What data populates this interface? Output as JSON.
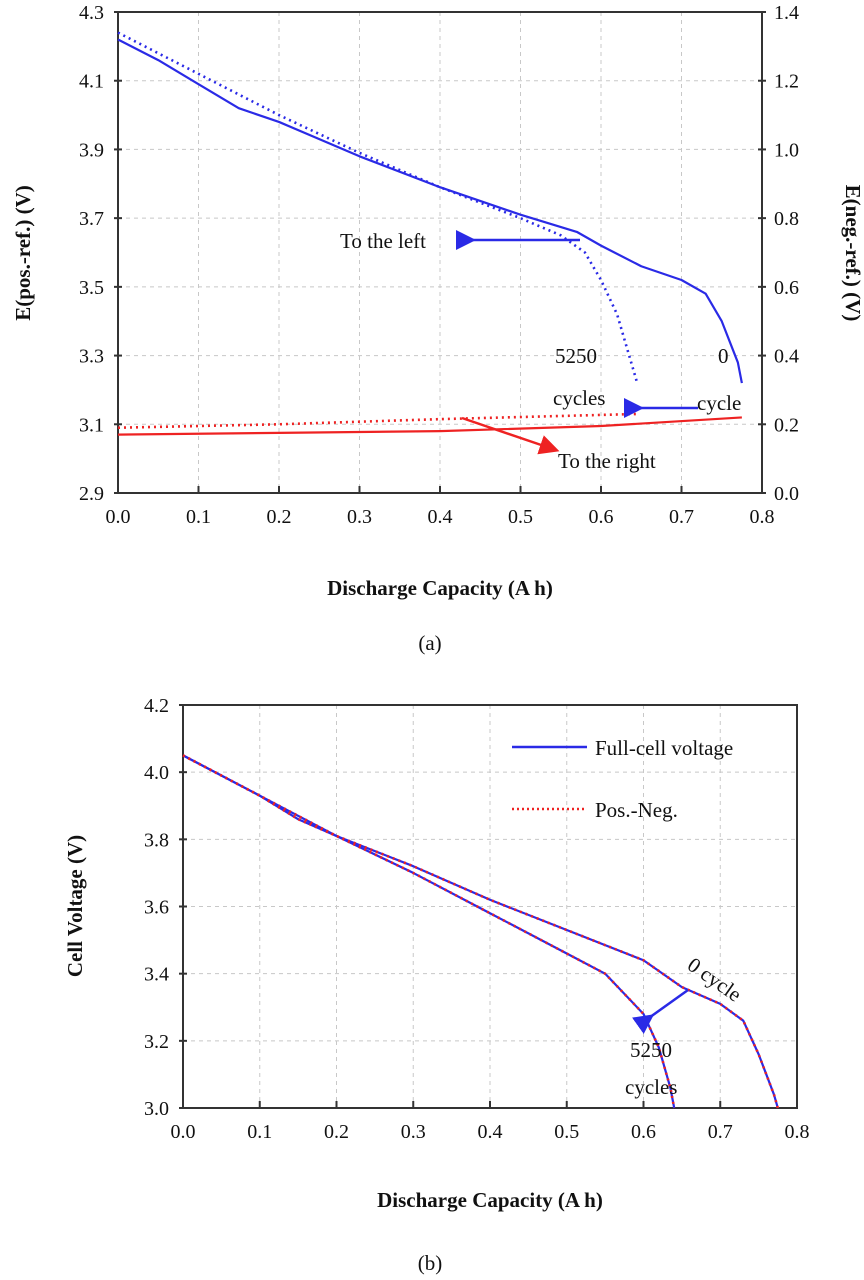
{
  "colors": {
    "blue": "#2a2ae6",
    "red": "#ee2222",
    "grid": "#c8c8c8",
    "axis": "#333333"
  },
  "chart_data": [
    {
      "type": "line",
      "caption": "(a)",
      "xlabel": "Discharge Capacity (A h)",
      "ylabel": "E(pos.-ref.) (V)",
      "y2label": "E(neg.-ref.) (V)",
      "xlim": [
        0,
        0.8
      ],
      "ylim": [
        2.9,
        4.3
      ],
      "y2lim": [
        0,
        1.4
      ],
      "xticks": [
        "0.0",
        "0.1",
        "0.2",
        "0.3",
        "0.4",
        "0.5",
        "0.6",
        "0.7",
        "0.8"
      ],
      "yticks": [
        "2.9",
        "3.1",
        "3.3",
        "3.5",
        "3.7",
        "3.9",
        "4.1",
        "4.3"
      ],
      "y2ticks": [
        "0.0",
        "0.2",
        "0.4",
        "0.6",
        "0.8",
        "1.0",
        "1.2",
        "1.4"
      ],
      "grid": true,
      "series": [
        {
          "name": "Positive 0 cycle",
          "axis": "left",
          "color": "blue",
          "style": "solid",
          "x": [
            0,
            0.05,
            0.1,
            0.15,
            0.2,
            0.3,
            0.4,
            0.5,
            0.57,
            0.6,
            0.65,
            0.7,
            0.73,
            0.75,
            0.77,
            0.775
          ],
          "y": [
            4.22,
            4.16,
            4.09,
            4.02,
            3.98,
            3.88,
            3.79,
            3.71,
            3.66,
            3.62,
            3.56,
            3.52,
            3.48,
            3.4,
            3.28,
            3.22
          ]
        },
        {
          "name": "Positive 5250 cycles",
          "axis": "left",
          "color": "blue",
          "style": "dotted",
          "x": [
            0,
            0.1,
            0.2,
            0.3,
            0.4,
            0.5,
            0.55,
            0.58,
            0.6,
            0.62,
            0.635,
            0.645
          ],
          "y": [
            4.24,
            4.12,
            4.0,
            3.89,
            3.79,
            3.7,
            3.65,
            3.6,
            3.52,
            3.42,
            3.3,
            3.22
          ]
        },
        {
          "name": "Negative 0 cycle",
          "axis": "right",
          "color": "red",
          "style": "solid",
          "x": [
            0,
            0.2,
            0.4,
            0.6,
            0.775
          ],
          "y": [
            0.17,
            0.175,
            0.18,
            0.195,
            0.22
          ]
        },
        {
          "name": "Negative 5250 cycles",
          "axis": "right",
          "color": "red",
          "style": "dotted",
          "x": [
            0,
            0.2,
            0.4,
            0.645
          ],
          "y": [
            0.19,
            0.2,
            0.215,
            0.23
          ]
        }
      ],
      "annotations": {
        "left": "To the left",
        "right": "To the right",
        "c5250": "5250",
        "cycles": "cycles",
        "c0": "0",
        "cycle": "cycle"
      }
    },
    {
      "type": "line",
      "caption": "(b)",
      "xlabel": "Discharge Capacity (A h)",
      "ylabel": "Cell Voltage (V)",
      "xlim": [
        0,
        0.8
      ],
      "ylim": [
        3.0,
        4.2
      ],
      "xticks": [
        "0.0",
        "0.1",
        "0.2",
        "0.3",
        "0.4",
        "0.5",
        "0.6",
        "0.7",
        "0.8"
      ],
      "yticks": [
        "3.0",
        "3.2",
        "3.4",
        "3.6",
        "3.8",
        "4.0",
        "4.2"
      ],
      "grid": true,
      "legend": {
        "placement": "top-right",
        "items": [
          "Full-cell voltage",
          "Pos.-Neg."
        ]
      },
      "series": [
        {
          "name": "Full-cell voltage 0 cycle",
          "color": "blue",
          "style": "solid",
          "x": [
            0,
            0.1,
            0.15,
            0.2,
            0.3,
            0.4,
            0.5,
            0.6,
            0.65,
            0.7,
            0.73,
            0.75,
            0.77,
            0.775
          ],
          "y": [
            4.05,
            3.93,
            3.86,
            3.81,
            3.72,
            3.62,
            3.53,
            3.44,
            3.36,
            3.31,
            3.26,
            3.16,
            3.04,
            3.0
          ]
        },
        {
          "name": "Full-cell voltage 5250 cycles",
          "color": "blue",
          "style": "solid",
          "x": [
            0,
            0.1,
            0.2,
            0.3,
            0.4,
            0.5,
            0.55,
            0.6,
            0.62,
            0.635,
            0.64
          ],
          "y": [
            4.05,
            3.93,
            3.81,
            3.7,
            3.58,
            3.46,
            3.4,
            3.28,
            3.18,
            3.06,
            3.0
          ]
        },
        {
          "name": "Pos.-Neg. 0 cycle",
          "color": "red",
          "style": "dotted",
          "x": [
            0,
            0.1,
            0.15,
            0.2,
            0.3,
            0.4,
            0.5,
            0.6,
            0.65,
            0.7,
            0.73,
            0.75,
            0.77,
            0.775
          ],
          "y": [
            4.05,
            3.93,
            3.86,
            3.81,
            3.72,
            3.62,
            3.53,
            3.44,
            3.36,
            3.31,
            3.26,
            3.16,
            3.04,
            3.0
          ]
        },
        {
          "name": "Pos.-Neg. 5250 cycles",
          "color": "red",
          "style": "dotted",
          "x": [
            0,
            0.1,
            0.2,
            0.3,
            0.4,
            0.5,
            0.55,
            0.6,
            0.62,
            0.635,
            0.64
          ],
          "y": [
            4.05,
            3.93,
            3.81,
            3.7,
            3.58,
            3.46,
            3.4,
            3.28,
            3.18,
            3.06,
            3.0
          ]
        }
      ],
      "annotations": {
        "c0cycle": "0 cycle",
        "c5250": "5250",
        "cycles": "cycles"
      }
    }
  ]
}
